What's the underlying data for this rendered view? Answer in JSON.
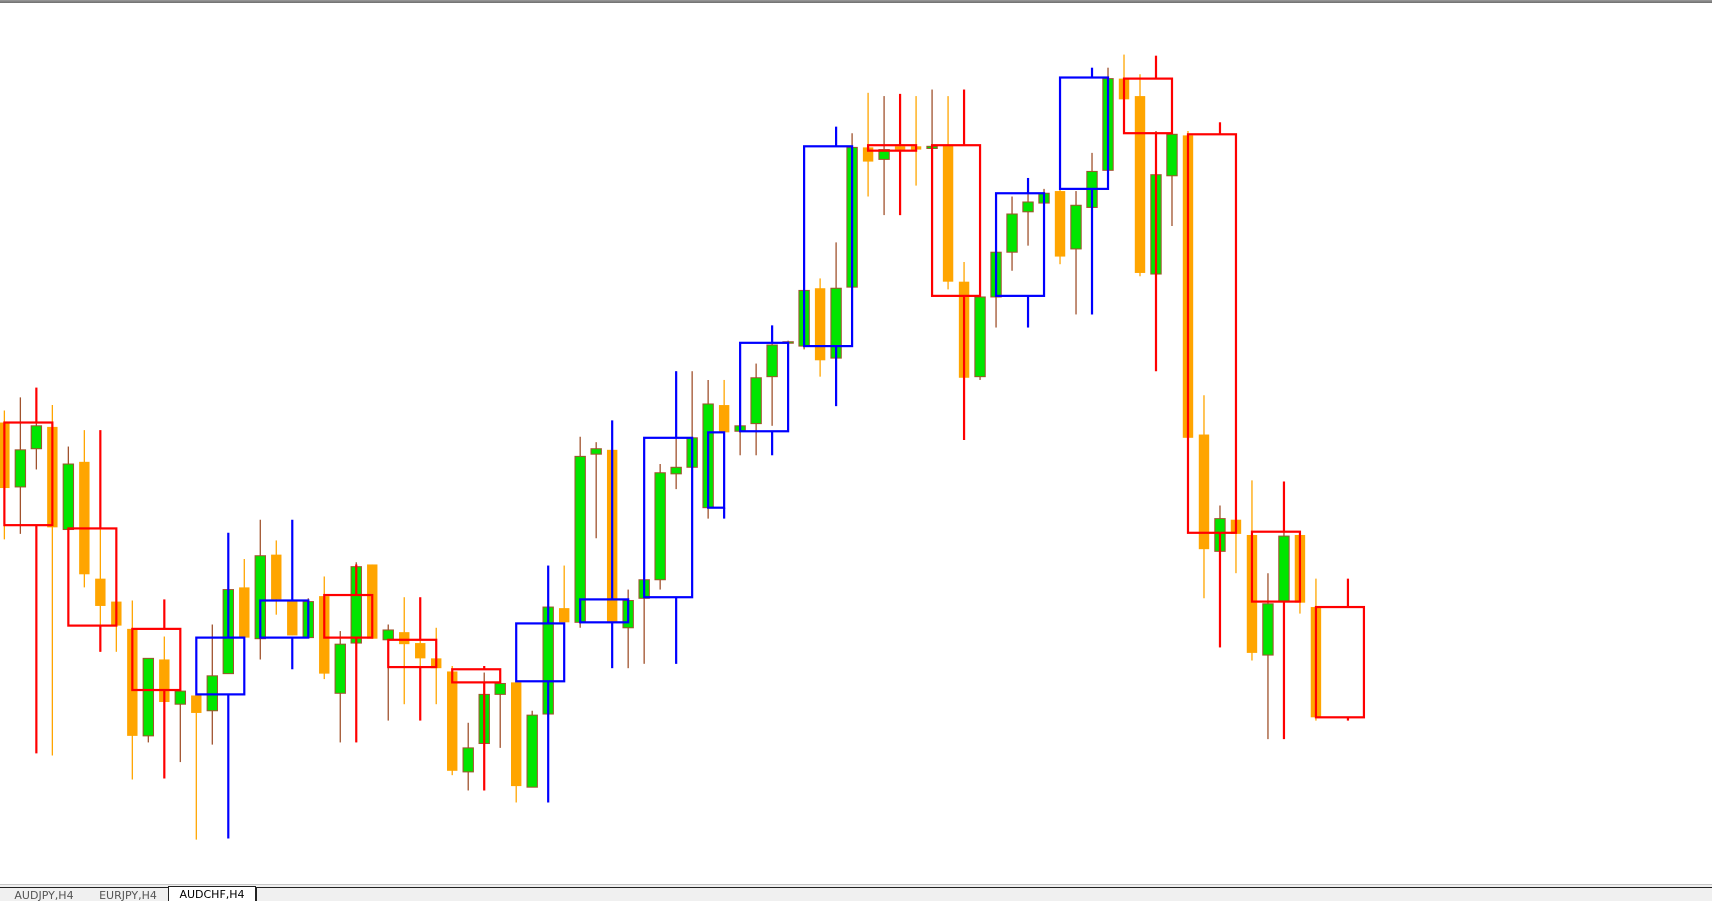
{
  "tabs": [
    {
      "label": "AUDJPY,H4",
      "active": false
    },
    {
      "label": "EURJPY,H4",
      "active": false
    },
    {
      "label": "AUDCHF,H4",
      "active": true
    }
  ],
  "colors": {
    "bull_body": "#00e600",
    "bull_outline": "#a0522d",
    "bear_body": "#ffa500",
    "htf_bull": "#0000ff",
    "htf_bear": "#ff0000"
  },
  "chart_data": {
    "type": "candlestick",
    "description_of_marks": "lower-timeframe candles with higher-timeframe candles drawn as hollow boxes",
    "candles_ohlc": [
      [
        436,
        447,
        329,
        376
      ],
      [
        377,
        459,
        334,
        411
      ],
      [
        412,
        437,
        393,
        433
      ],
      [
        432,
        452,
        131,
        340
      ],
      [
        338,
        414,
        338,
        398
      ],
      [
        400,
        429,
        285,
        297
      ],
      [
        293,
        338,
        226,
        268
      ],
      [
        272,
        272,
        226,
        250
      ],
      [
        247,
        273,
        109,
        149
      ],
      [
        149,
        220,
        143,
        220
      ],
      [
        219,
        240,
        160,
        180
      ],
      [
        178,
        190,
        125,
        190
      ],
      [
        186,
        186,
        54,
        170
      ],
      [
        172,
        251,
        141,
        204
      ],
      [
        206,
        283,
        206,
        283
      ],
      [
        285,
        311,
        239,
        239
      ],
      [
        238,
        347,
        219,
        314
      ],
      [
        315,
        328,
        260,
        274
      ],
      [
        273,
        273,
        241,
        241
      ],
      [
        239,
        275,
        239,
        272
      ],
      [
        277,
        295,
        201,
        206
      ],
      [
        188,
        245,
        143,
        233
      ],
      [
        234,
        308,
        143,
        304
      ],
      [
        306,
        306,
        238,
        238
      ],
      [
        237,
        251,
        163,
        246
      ],
      [
        244,
        276,
        178,
        233
      ],
      [
        234,
        248,
        210,
        220
      ],
      [
        220,
        248,
        178,
        211
      ],
      [
        208,
        213,
        113,
        117
      ],
      [
        116,
        161,
        99,
        138
      ],
      [
        142,
        207,
        99,
        187
      ],
      [
        187,
        203,
        138,
        197
      ],
      [
        198,
        198,
        88,
        103
      ],
      [
        102,
        172,
        102,
        168
      ],
      [
        169,
        270,
        165,
        267
      ],
      [
        266,
        305,
        250,
        253
      ],
      [
        253,
        423,
        248,
        405
      ],
      [
        407,
        418,
        330,
        412
      ],
      [
        411,
        411,
        248,
        253
      ],
      [
        248,
        283,
        211,
        273
      ],
      [
        275,
        303,
        215,
        292
      ],
      [
        292,
        398,
        283,
        390
      ],
      [
        389,
        483,
        375,
        395
      ],
      [
        395,
        483,
        373,
        422
      ],
      [
        358,
        475,
        348,
        453
      ],
      [
        452,
        475,
        413,
        427
      ],
      [
        428,
        453,
        406,
        433
      ],
      [
        435,
        490,
        406,
        477
      ],
      [
        478,
        523,
        433,
        507
      ],
      [
        509,
        511,
        508,
        510
      ],
      [
        506,
        563,
        503,
        557
      ],
      [
        559,
        568,
        478,
        493
      ],
      [
        495,
        601,
        493,
        559
      ],
      [
        560,
        701,
        560,
        688
      ],
      [
        688,
        738,
        643,
        675
      ],
      [
        677,
        735,
        626,
        686
      ],
      [
        689,
        737,
        626,
        686
      ],
      [
        689,
        735,
        653,
        686
      ],
      [
        687,
        741,
        683,
        689
      ],
      [
        690,
        735,
        558,
        565
      ],
      [
        565,
        583,
        420,
        477
      ],
      [
        478,
        558,
        475,
        551
      ],
      [
        551,
        595,
        523,
        592
      ],
      [
        592,
        643,
        575,
        627
      ],
      [
        629,
        658,
        598,
        638
      ],
      [
        637,
        650,
        635,
        646
      ],
      [
        648,
        658,
        581,
        588
      ],
      [
        595,
        648,
        535,
        635
      ],
      [
        633,
        683,
        535,
        666
      ],
      [
        667,
        761,
        666,
        751
      ],
      [
        751,
        773,
        732,
        732
      ],
      [
        735,
        755,
        570,
        573
      ],
      [
        572,
        703,
        571,
        663
      ],
      [
        662,
        711,
        616,
        700
      ],
      [
        699,
        703,
        413,
        422
      ],
      [
        425,
        461,
        275,
        320
      ],
      [
        318,
        360,
        230,
        348
      ],
      [
        347,
        347,
        298,
        334
      ],
      [
        333,
        383,
        218,
        225
      ],
      [
        223,
        298,
        146,
        270
      ],
      [
        272,
        339,
        258,
        332
      ],
      [
        333,
        336,
        261,
        271
      ],
      [
        267,
        293,
        163,
        166
      ]
    ],
    "htf_candles": [
      {
        "from": 0,
        "to": 3,
        "wick_at": 2,
        "ohlc": [
          436,
          468,
          133,
          342
        ]
      },
      {
        "from": 4,
        "to": 7,
        "wick_at": 6,
        "ohlc": [
          339,
          429,
          226,
          250
        ]
      },
      {
        "from": 8,
        "to": 11,
        "wick_at": 10,
        "ohlc": [
          247,
          274,
          110,
          191
        ]
      },
      {
        "from": 12,
        "to": 15,
        "wick_at": 14,
        "ohlc": [
          187,
          335,
          55,
          239
        ]
      },
      {
        "from": 16,
        "to": 19,
        "wick_at": 18,
        "ohlc": [
          239,
          347,
          210,
          273
        ]
      },
      {
        "from": 20,
        "to": 23,
        "wick_at": 22,
        "ohlc": [
          278,
          306,
          143,
          239
        ]
      },
      {
        "from": 24,
        "to": 27,
        "wick_at": 26,
        "ohlc": [
          237,
          276,
          163,
          212
        ]
      },
      {
        "from": 28,
        "to": 31,
        "wick_at": 30,
        "ohlc": [
          210,
          213,
          99,
          198
        ]
      },
      {
        "from": 32,
        "to": 35,
        "wick_at": 34,
        "ohlc": [
          199,
          305,
          88,
          252
        ]
      },
      {
        "from": 36,
        "to": 39,
        "wick_at": 38,
        "ohlc": [
          253,
          438,
          211,
          274
        ]
      },
      {
        "from": 40,
        "to": 43,
        "wick_at": 42,
        "ohlc": [
          276,
          483,
          215,
          422
        ]
      },
      {
        "from": 44,
        "to": 45,
        "wick_at": 45,
        "ohlc": [
          358,
          427,
          348,
          427
        ]
      },
      {
        "from": 46,
        "to": 49,
        "wick_at": 48,
        "ohlc": [
          428,
          525,
          406,
          509
        ]
      },
      {
        "from": 50,
        "to": 53,
        "wick_at": 52,
        "ohlc": [
          506,
          707,
          451,
          689
        ]
      },
      {
        "from": 54,
        "to": 57,
        "wick_at": 56,
        "ohlc": [
          690,
          737,
          626,
          685
        ]
      },
      {
        "from": 58,
        "to": 61,
        "wick_at": 60,
        "ohlc": [
          690,
          741,
          420,
          552
        ]
      },
      {
        "from": 62,
        "to": 65,
        "wick_at": 64,
        "ohlc": [
          552,
          660,
          523,
          646
        ]
      },
      {
        "from": 66,
        "to": 69,
        "wick_at": 68,
        "ohlc": [
          650,
          761,
          535,
          752
        ]
      },
      {
        "from": 70,
        "to": 73,
        "wick_at": 72,
        "ohlc": [
          751,
          772,
          483,
          701
        ]
      },
      {
        "from": 74,
        "to": 77,
        "wick_at": 76,
        "ohlc": [
          700,
          711,
          230,
          335
        ]
      },
      {
        "from": 78,
        "to": 81,
        "wick_at": 80,
        "ohlc": [
          336,
          382,
          146,
          272
        ]
      },
      {
        "from": 82,
        "to": 85,
        "wick_at": 84,
        "ohlc": [
          267,
          293,
          163,
          166
        ]
      }
    ],
    "axes_visible": false,
    "grid": false
  }
}
